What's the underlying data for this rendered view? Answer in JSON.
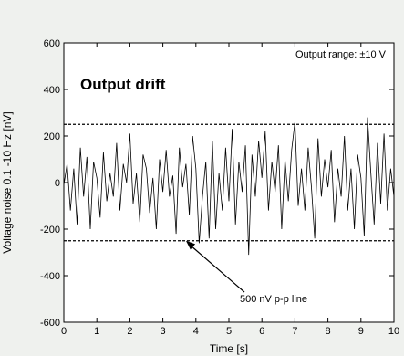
{
  "chart_data": {
    "type": "line",
    "title": "Output drift",
    "annotation_top": "Output range: ±10 V",
    "xlabel": "Time [s]",
    "ylabel": "Voltage noise 0.1 -10 Hz [nV]",
    "xlim": [
      0,
      10
    ],
    "ylim": [
      -600,
      600
    ],
    "xticks": [
      0,
      1,
      2,
      3,
      4,
      5,
      6,
      7,
      8,
      9,
      10
    ],
    "yticks": [
      -600,
      -400,
      -200,
      0,
      200,
      400,
      600
    ],
    "grid": false,
    "reference_lines": [
      {
        "y": 250,
        "style": "dashed"
      },
      {
        "y": -250,
        "style": "dashed"
      }
    ],
    "arrow_annotation": {
      "text": "500 nV p-p line",
      "target": [
        3.7,
        -250
      ]
    },
    "series": [
      {
        "x": [
          0,
          0.1,
          0.2,
          0.3,
          0.4,
          0.5,
          0.6,
          0.7,
          0.8,
          0.9,
          1,
          1.1,
          1.2,
          1.3,
          1.4,
          1.5,
          1.6,
          1.7,
          1.8,
          1.9,
          2,
          2.1,
          2.2,
          2.3,
          2.4,
          2.5,
          2.6,
          2.7,
          2.8,
          2.9,
          3,
          3.1,
          3.2,
          3.3,
          3.4,
          3.5,
          3.6,
          3.7,
          3.8,
          3.9,
          4,
          4.1,
          4.2,
          4.3,
          4.4,
          4.5,
          4.6,
          4.7,
          4.8,
          4.9,
          5,
          5.1,
          5.2,
          5.3,
          5.4,
          5.5,
          5.6,
          5.7,
          5.8,
          5.9,
          6,
          6.1,
          6.2,
          6.3,
          6.4,
          6.5,
          6.6,
          6.7,
          6.8,
          6.9,
          7,
          7.1,
          7.2,
          7.3,
          7.4,
          7.5,
          7.6,
          7.7,
          7.8,
          7.9,
          8,
          8.1,
          8.2,
          8.3,
          8.4,
          8.5,
          8.6,
          8.7,
          8.8,
          8.9,
          9,
          9.1,
          9.2,
          9.3,
          9.4,
          9.5,
          9.6,
          9.7,
          9.8,
          9.9,
          10
        ],
        "y": [
          -10,
          80,
          -120,
          60,
          -180,
          150,
          -60,
          110,
          -200,
          90,
          20,
          -150,
          130,
          -80,
          40,
          -60,
          170,
          -120,
          80,
          0,
          210,
          -90,
          40,
          -170,
          120,
          60,
          -130,
          20,
          -200,
          100,
          -40,
          140,
          -60,
          30,
          -220,
          150,
          -20,
          80,
          -140,
          200,
          60,
          -260,
          -60,
          90,
          -240,
          180,
          -200,
          40,
          -120,
          150,
          -80,
          230,
          -180,
          90,
          -40,
          160,
          -310,
          120,
          -60,
          180,
          20,
          220,
          -120,
          90,
          -40,
          160,
          -200,
          100,
          -80,
          140,
          260,
          -100,
          60,
          -120,
          150,
          -20,
          -240,
          190,
          -60,
          100,
          -20,
          140,
          -170,
          60,
          -60,
          200,
          -120,
          60,
          -200,
          120,
          20,
          -230,
          280,
          40,
          -180,
          170,
          -90,
          210,
          -120,
          60,
          -60
        ]
      }
    ]
  }
}
